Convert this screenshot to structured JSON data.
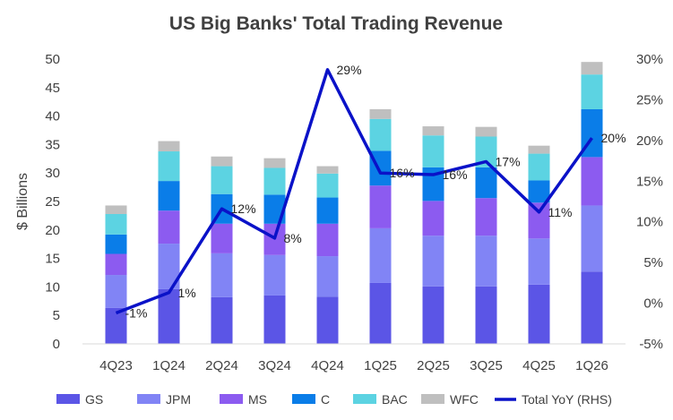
{
  "chart_data": {
    "type": "bar",
    "stacked": true,
    "title": "US Big Banks' Total Trading Revenue",
    "ylabel": "$ Billions",
    "ylim": [
      0,
      50
    ],
    "yticks": [
      "0",
      "5",
      "10",
      "15",
      "20",
      "25",
      "30",
      "35",
      "40",
      "45",
      "50"
    ],
    "y2lim": [
      -5,
      30
    ],
    "y2ticks": [
      "-5%",
      "0%",
      "5%",
      "10%",
      "15%",
      "20%",
      "25%",
      "30%"
    ],
    "categories": [
      "4Q23",
      "1Q24",
      "2Q24",
      "3Q24",
      "4Q24",
      "1Q25",
      "2Q25",
      "3Q25",
      "4Q25",
      "1Q26"
    ],
    "series": [
      {
        "name": "GS",
        "color": "#5b55e6",
        "values": [
          6.3,
          9.6,
          8.2,
          8.5,
          8.3,
          10.7,
          10.1,
          10.1,
          10.4,
          12.7
        ]
      },
      {
        "name": "JPM",
        "color": "#8184f5",
        "values": [
          5.8,
          8.0,
          7.7,
          7.1,
          7.1,
          9.6,
          8.9,
          8.9,
          8.1,
          11.6
        ]
      },
      {
        "name": "MS",
        "color": "#8c5bf0",
        "values": [
          3.7,
          5.8,
          5.2,
          5.5,
          5.7,
          7.5,
          6.1,
          6.6,
          6.3,
          8.5
        ]
      },
      {
        "name": "C",
        "color": "#0a7de8",
        "values": [
          3.4,
          5.2,
          5.2,
          5.1,
          4.6,
          6.1,
          5.9,
          5.4,
          3.9,
          8.4
        ]
      },
      {
        "name": "BAC",
        "color": "#5cd3e2",
        "values": [
          3.6,
          5.2,
          4.9,
          4.7,
          4.2,
          5.6,
          5.6,
          5.4,
          4.7,
          6.1
        ]
      },
      {
        "name": "WFC",
        "color": "#bfbfbf",
        "values": [
          1.5,
          1.8,
          1.7,
          1.7,
          1.3,
          1.7,
          1.6,
          1.7,
          1.4,
          2.2
        ]
      }
    ],
    "line": {
      "name": "Total YoY (RHS)",
      "axis": "right",
      "color": "#0a12c8",
      "values": [
        -1.2,
        1.3,
        11.6,
        8.0,
        28.7,
        16.0,
        15.8,
        17.4,
        11.2,
        20.3
      ],
      "labels": [
        "-1%",
        "1%",
        "12%",
        "8%",
        "29%",
        "16%",
        "16%",
        "17%",
        "11%",
        "20%"
      ]
    },
    "legend_position": "bottom",
    "grid": false
  }
}
